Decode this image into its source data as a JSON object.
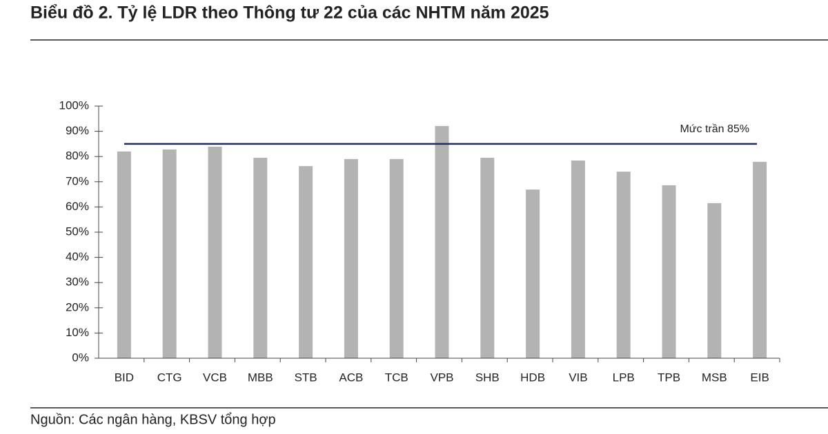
{
  "chart_data": {
    "type": "bar",
    "title": "Biểu đồ 2. Tỷ lệ LDR theo Thông tư 22 của các NHTM năm 2025",
    "categories": [
      "BID",
      "CTG",
      "VCB",
      "MBB",
      "STB",
      "ACB",
      "TCB",
      "VPB",
      "SHB",
      "HDB",
      "VIB",
      "LPB",
      "TPB",
      "MSB",
      "EIB"
    ],
    "values": [
      82,
      82.8,
      83.9,
      79.5,
      76.2,
      79,
      79,
      92.1,
      79.5,
      66.9,
      78.4,
      74,
      68.6,
      61.5,
      77.9
    ],
    "color": "#b3b3b3",
    "ylim": [
      0,
      100
    ],
    "yticks": [
      {
        "value": 0,
        "label": "0%"
      },
      {
        "value": 10,
        "label": "10%"
      },
      {
        "value": 20,
        "label": "20%"
      },
      {
        "value": 30,
        "label": "30%"
      },
      {
        "value": 40,
        "label": "40%"
      },
      {
        "value": 50,
        "label": "50%"
      },
      {
        "value": 60,
        "label": "60%"
      },
      {
        "value": 70,
        "label": "70%"
      },
      {
        "value": 80,
        "label": "80%"
      },
      {
        "value": 90,
        "label": "90%"
      },
      {
        "value": 100,
        "label": "100%"
      }
    ],
    "reference_line": {
      "value": 85,
      "label": "Mức trần 85%",
      "color": "#1f2d5a"
    },
    "source": "Nguồn: Các ngân hàng, KBSV tổng hợp"
  }
}
